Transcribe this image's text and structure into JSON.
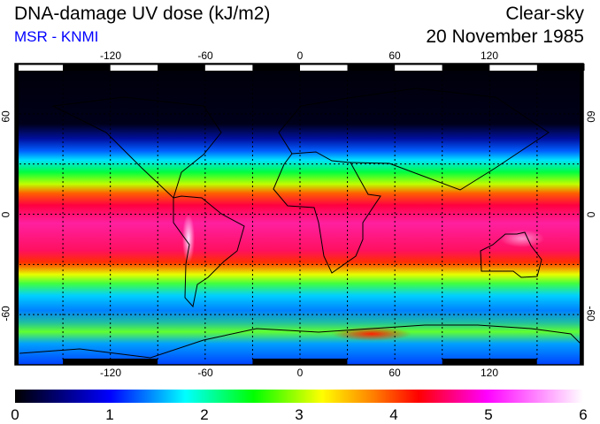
{
  "header": {
    "title": "DNA-damage UV dose (kJ/m2)",
    "source": "MSR - KNMI",
    "condition": "Clear-sky",
    "date": "20 November 1985"
  },
  "map": {
    "lon_labels": [
      "-120",
      "-60",
      "0",
      "60",
      "120"
    ],
    "lat_labels_left": [
      "60",
      "0",
      "-60"
    ],
    "lat_labels_right": [
      "60",
      "0",
      "-60"
    ]
  },
  "colorbar": {
    "labels": [
      "0",
      "1",
      "2",
      "3",
      "4",
      "5",
      "6"
    ],
    "min": 0,
    "max": 6,
    "unit": "kJ/m2",
    "colors": [
      "#000000",
      "#0000ff",
      "#00ffff",
      "#00ff00",
      "#ffff00",
      "#ff0000",
      "#ff00ff",
      "#ffffff"
    ]
  }
}
